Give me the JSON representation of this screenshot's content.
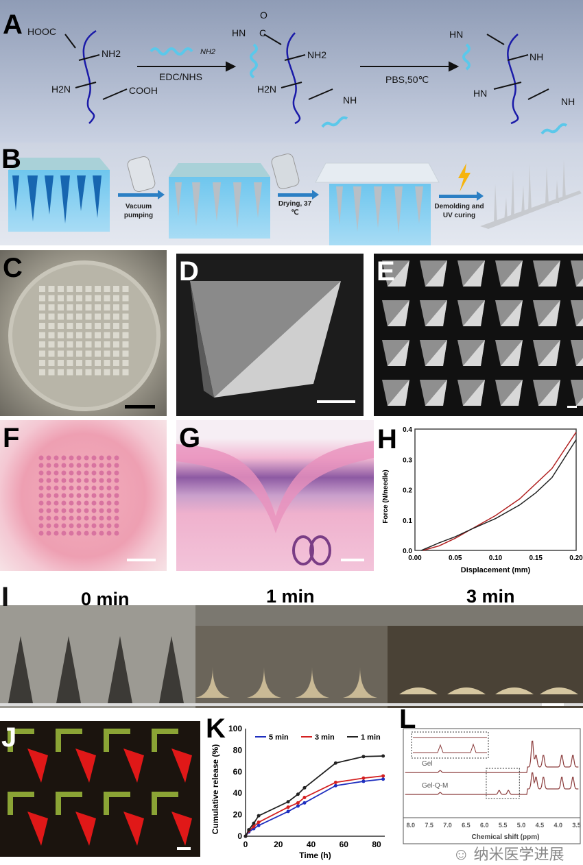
{
  "panels": {
    "A": {
      "label": "A",
      "reagent1": "EDC/NHS",
      "reagent1_group": "NH2",
      "reagent2": "PBS,50℃",
      "groups": {
        "hooc": "HOOC",
        "nh2": "NH2",
        "h2n": "H2N",
        "cooh": "COOH",
        "hn": "HN",
        "c": "C",
        "o": "O",
        "nh": "NH"
      }
    },
    "B": {
      "label": "B",
      "steps": [
        "Vacuum pumping",
        "Drying, 37 ℃",
        "Demolding and UV curing"
      ]
    },
    "C": {
      "label": "C"
    },
    "D": {
      "label": "D"
    },
    "E": {
      "label": "E"
    },
    "F": {
      "label": "F"
    },
    "G": {
      "label": "G"
    },
    "H": {
      "label": "H"
    },
    "I": {
      "label": "I",
      "times": [
        "0 min",
        "1 min",
        "3 min"
      ]
    },
    "J": {
      "label": "J"
    },
    "K": {
      "label": "K"
    },
    "L": {
      "label": "L"
    }
  },
  "colors": {
    "backbone": "#1a1aa8",
    "helix": "#5bc8ea",
    "red": "#b22222",
    "black": "#222222",
    "blue": "#1f2fbf"
  },
  "watermark": "纳米医学进展",
  "chart_data": [
    {
      "panel": "H",
      "type": "line",
      "xlabel": "Displacement (mm)",
      "ylabel": "Force (N/needle)",
      "xlim": [
        0,
        0.2
      ],
      "ylim": [
        0,
        0.4
      ],
      "xticks": [
        "0.00",
        "0.05",
        "0.10",
        "0.15",
        "0.20"
      ],
      "yticks": [
        "0.0",
        "0.1",
        "0.2",
        "0.3",
        "0.4"
      ],
      "series": [
        {
          "color": "#b22222",
          "x": [
            0.01,
            0.03,
            0.05,
            0.07,
            0.1,
            0.13,
            0.15,
            0.17,
            0.2
          ],
          "y": [
            0,
            0.015,
            0.04,
            0.07,
            0.115,
            0.17,
            0.22,
            0.27,
            0.39
          ]
        },
        {
          "color": "#222222",
          "x": [
            0.008,
            0.03,
            0.05,
            0.07,
            0.1,
            0.13,
            0.15,
            0.17,
            0.2
          ],
          "y": [
            0,
            0.025,
            0.045,
            0.07,
            0.105,
            0.15,
            0.19,
            0.24,
            0.365
          ]
        }
      ]
    },
    {
      "panel": "K",
      "type": "line",
      "xlabel": "Time (h)",
      "ylabel": "Cumulative release (%)",
      "xlim": [
        0,
        85
      ],
      "ylim": [
        0,
        100
      ],
      "xticks": [
        "0",
        "20",
        "40",
        "60",
        "80"
      ],
      "yticks": [
        "0",
        "20",
        "40",
        "60",
        "80",
        "100"
      ],
      "legend": "top",
      "x": [
        0,
        2,
        5,
        8,
        26,
        32,
        36,
        55,
        72,
        84
      ],
      "series": [
        {
          "name": "5 min",
          "color": "#1f2fbf",
          "values": [
            0,
            4,
            7,
            10,
            23,
            28,
            31,
            47,
            51,
            53
          ]
        },
        {
          "name": "3 min",
          "color": "#d42020",
          "values": [
            0,
            5,
            9,
            13,
            27,
            31,
            36,
            50,
            54,
            56
          ]
        },
        {
          "name": "1 min",
          "color": "#222222",
          "values": [
            0,
            6,
            12,
            19,
            32,
            39,
            45,
            68,
            74,
            74.5
          ]
        }
      ]
    },
    {
      "panel": "L",
      "type": "line",
      "xlabel": "Chemical shift (ppm)",
      "xlim": [
        8.0,
        3.5
      ],
      "xticks": [
        "8.0",
        "7.5",
        "7.0",
        "6.5",
        "6.0",
        "5.5",
        "5.0",
        "4.5",
        "4.0",
        "3.5"
      ],
      "series": [
        {
          "name": "Gel",
          "peaks_ppm": [
            7.2,
            4.7,
            4.6,
            4.4,
            3.9,
            3.6
          ]
        },
        {
          "name": "Gel-Q-M",
          "peaks_ppm": [
            7.2,
            5.6,
            5.35,
            4.7,
            4.6,
            4.4,
            3.9,
            3.6
          ]
        }
      ]
    }
  ]
}
